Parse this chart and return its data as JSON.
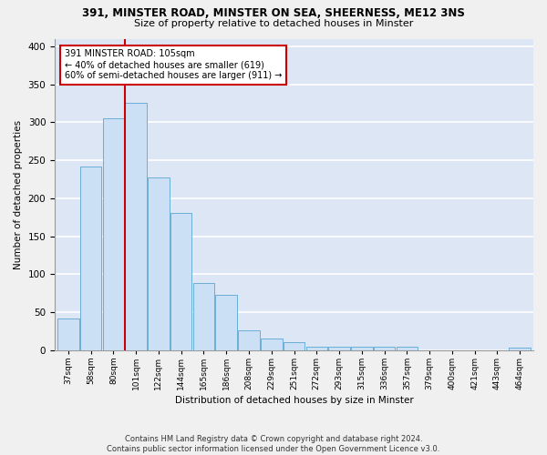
{
  "title_line1": "391, MINSTER ROAD, MINSTER ON SEA, SHEERNESS, ME12 3NS",
  "title_line2": "Size of property relative to detached houses in Minster",
  "xlabel": "Distribution of detached houses by size in Minster",
  "ylabel": "Number of detached properties",
  "categories": [
    "37sqm",
    "58sqm",
    "80sqm",
    "101sqm",
    "122sqm",
    "144sqm",
    "165sqm",
    "186sqm",
    "208sqm",
    "229sqm",
    "251sqm",
    "272sqm",
    "293sqm",
    "315sqm",
    "336sqm",
    "357sqm",
    "379sqm",
    "400sqm",
    "421sqm",
    "443sqm",
    "464sqm"
  ],
  "values": [
    42,
    242,
    305,
    325,
    227,
    180,
    88,
    73,
    26,
    15,
    10,
    4,
    4,
    4,
    4,
    4,
    0,
    0,
    0,
    0,
    3
  ],
  "bar_color": "#cce0f5",
  "bar_edge_color": "#6aaed6",
  "background_color": "#dce6f5",
  "grid_color": "#ffffff",
  "annotation_text": "391 MINSTER ROAD: 105sqm\n← 40% of detached houses are smaller (619)\n60% of semi-detached houses are larger (911) →",
  "annotation_box_color": "#ffffff",
  "annotation_box_edge_color": "#cc0000",
  "vline_color": "#cc0000",
  "vline_x_index": 3,
  "ylim": [
    0,
    410
  ],
  "yticks": [
    0,
    50,
    100,
    150,
    200,
    250,
    300,
    350,
    400
  ],
  "footnote": "Contains HM Land Registry data © Crown copyright and database right 2024.\nContains public sector information licensed under the Open Government Licence v3.0.",
  "fig_facecolor": "#f0f0f0"
}
